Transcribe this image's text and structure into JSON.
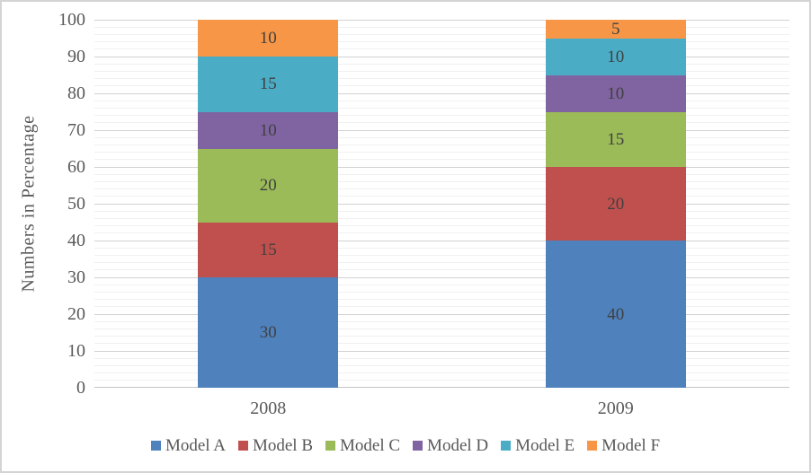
{
  "frame": {
    "background": "#ffffff",
    "border_color": "#d4d4d4"
  },
  "chart_data": {
    "type": "bar",
    "stacked": true,
    "title": "",
    "xlabel": "",
    "ylabel": "Numbers in Percentage",
    "categories": [
      "2008",
      "2009"
    ],
    "series": [
      {
        "name": "Model A",
        "color": "#4F81BD",
        "values": [
          30,
          40
        ]
      },
      {
        "name": "Model B",
        "color": "#C0504D",
        "values": [
          15,
          20
        ]
      },
      {
        "name": "Model C",
        "color": "#9BBB59",
        "values": [
          20,
          15
        ]
      },
      {
        "name": "Model D",
        "color": "#8064A2",
        "values": [
          10,
          10
        ]
      },
      {
        "name": "Model E",
        "color": "#4BACC6",
        "values": [
          15,
          10
        ]
      },
      {
        "name": "Model F",
        "color": "#F79646",
        "values": [
          10,
          5
        ]
      }
    ],
    "totals": [
      100,
      100
    ],
    "ylim": [
      0,
      100
    ],
    "y_ticks": [
      0,
      10,
      20,
      30,
      40,
      50,
      60,
      70,
      80,
      90,
      100
    ],
    "y_major_step": 10,
    "y_minor_step": 2,
    "data_labels": true,
    "grid": {
      "major_color": "#d2d2d2",
      "minor_color": "#f0f0f0",
      "axis_line_color": "#c4c4c4"
    },
    "legend_position": "bottom",
    "text_colors": {
      "tick_label": "#595959",
      "bar_label": "#404040",
      "legend_label": "#595959",
      "axis_title": "#595959"
    }
  }
}
